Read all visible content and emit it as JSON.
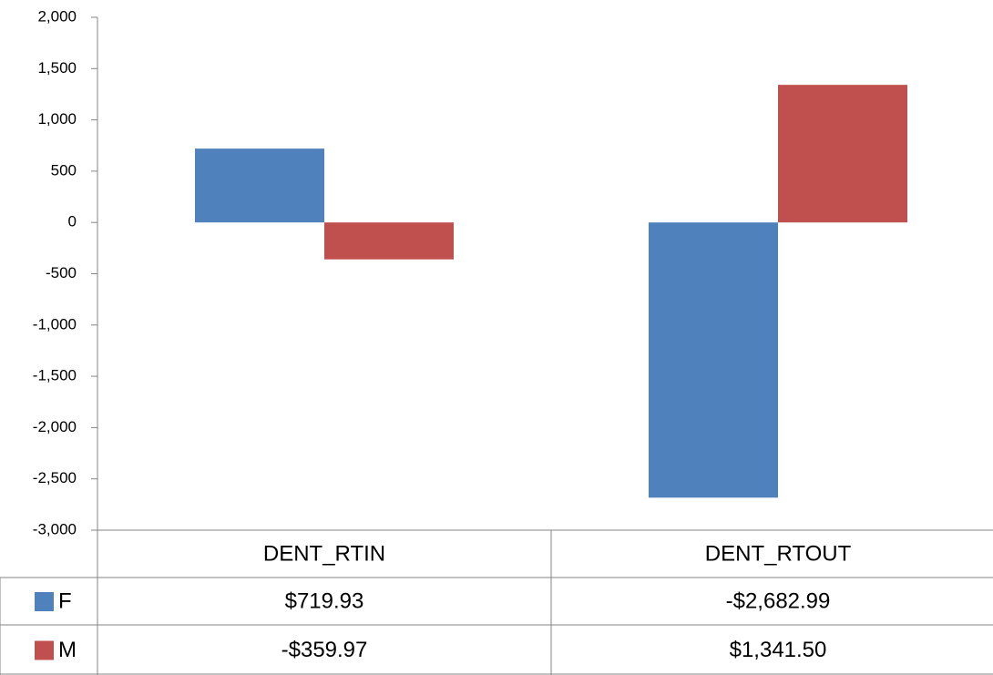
{
  "chart_data": {
    "type": "bar",
    "categories": [
      "DENT_RTIN",
      "DENT_RTOUT"
    ],
    "series": [
      {
        "name": "F",
        "color": "#4f81bd",
        "values": [
          719.93,
          -2682.99
        ],
        "value_labels": [
          "$719.93",
          "-$2,682.99"
        ]
      },
      {
        "name": "M",
        "color": "#c0504d",
        "values": [
          -359.97,
          1341.5
        ],
        "value_labels": [
          "-$359.97",
          "$1,341.50"
        ]
      }
    ],
    "ylim": [
      -3000,
      2000
    ],
    "yticks": [
      {
        "value": -3000,
        "label": "-3,000"
      },
      {
        "value": -2500,
        "label": "-2,500"
      },
      {
        "value": -2000,
        "label": "-2,000"
      },
      {
        "value": -1500,
        "label": "-1,500"
      },
      {
        "value": -1000,
        "label": "-1,000"
      },
      -500,
      0,
      500,
      {
        "value": 1000,
        "label": "1,000"
      },
      {
        "value": 1500,
        "label": "1,500"
      },
      {
        "value": 2000,
        "label": "2,000"
      }
    ],
    "grid": false
  }
}
